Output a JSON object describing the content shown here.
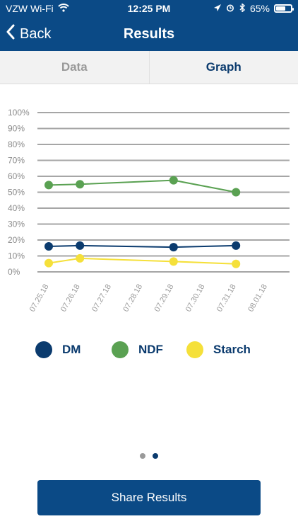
{
  "status": {
    "carrier": "VZW Wi-Fi",
    "time": "12:25 PM",
    "battery": "65%",
    "battery_level": 0.65
  },
  "nav": {
    "back_label": "Back",
    "title": "Results"
  },
  "tabs": [
    {
      "label": "Data",
      "selected": false
    },
    {
      "label": "Graph",
      "selected": true
    }
  ],
  "legend": [
    {
      "label": "DM",
      "color": "#0b3b6e"
    },
    {
      "label": "NDF",
      "color": "#5aa152"
    },
    {
      "label": "Starch",
      "color": "#f5e03a"
    }
  ],
  "pager": {
    "count": 2,
    "active_index": 1
  },
  "share_button_label": "Share Results",
  "chart_data": {
    "type": "line",
    "categories": [
      "07.25.18",
      "07.26.18",
      "07.27.18",
      "07.28.18",
      "07.29.18",
      "07.30.18",
      "07.31.18",
      "08.01.18"
    ],
    "y_ticks": [
      "0%",
      "10%",
      "20%",
      "30%",
      "40%",
      "50%",
      "60%",
      "70%",
      "80%",
      "90%",
      "100%"
    ],
    "ylim": [
      0,
      100
    ],
    "grid": true,
    "legend_position": "bottom",
    "series": [
      {
        "name": "DM",
        "color": "#0b3b6e",
        "points": [
          {
            "x": "07.25.18",
            "y": 16
          },
          {
            "x": "07.26.18",
            "y": 16.5
          },
          {
            "x": "07.29.18",
            "y": 15.5
          },
          {
            "x": "07.31.18",
            "y": 16.5
          }
        ]
      },
      {
        "name": "NDF",
        "color": "#5aa152",
        "points": [
          {
            "x": "07.25.18",
            "y": 54.5
          },
          {
            "x": "07.26.18",
            "y": 55
          },
          {
            "x": "07.29.18",
            "y": 57.5
          },
          {
            "x": "07.31.18",
            "y": 50
          }
        ]
      },
      {
        "name": "Starch",
        "color": "#f5e03a",
        "points": [
          {
            "x": "07.25.18",
            "y": 5.5
          },
          {
            "x": "07.26.18",
            "y": 8.5
          },
          {
            "x": "07.29.18",
            "y": 6.5
          },
          {
            "x": "07.31.18",
            "y": 5
          }
        ]
      }
    ]
  }
}
